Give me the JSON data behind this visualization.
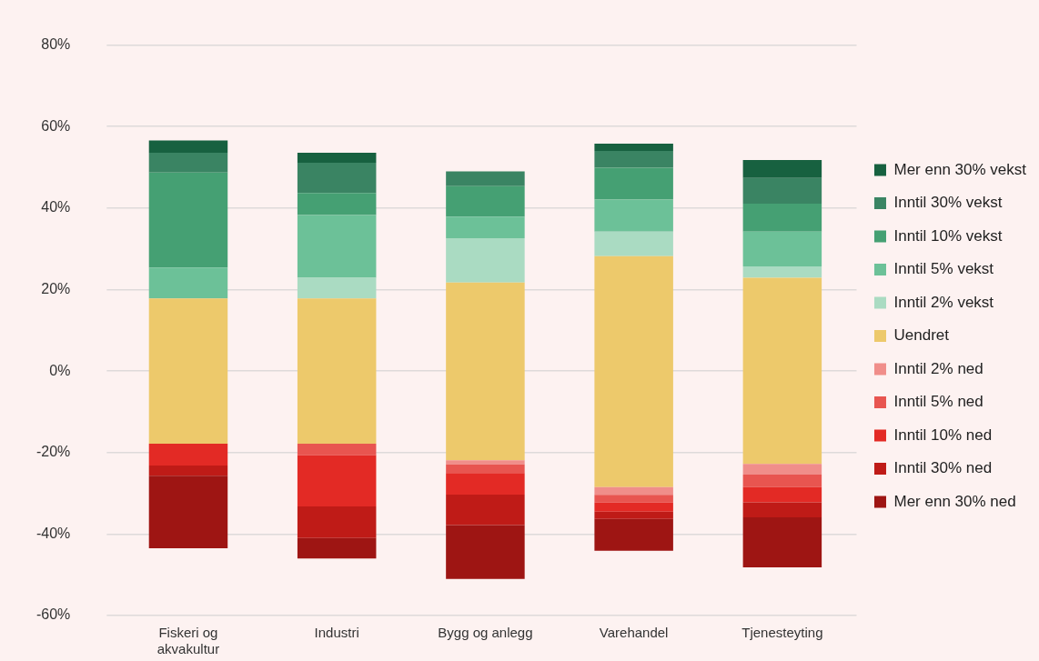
{
  "chart_data": {
    "type": "bar",
    "categories": [
      "Fiskeri og akvakultur",
      "Industri",
      "Bygg og anlegg",
      "Varehandel",
      "Tjenesteyting"
    ],
    "series": [
      {
        "name": "Mer enn 30% ned",
        "color": "#9e1513",
        "base": [
          -43.5,
          -46.0,
          -51.0,
          -44.1,
          -48.2
        ],
        "values": [
          17.8,
          5.0,
          13.2,
          7.8,
          12.3
        ]
      },
      {
        "name": "Inntil 30% ned",
        "color": "#bf1b17",
        "base": [
          -25.7,
          -41.0,
          -37.8,
          -36.3,
          -35.9
        ],
        "values": [
          2.5,
          7.8,
          7.5,
          1.8,
          3.7
        ]
      },
      {
        "name": "Inntil 10% ned",
        "color": "#e32a25",
        "base": [
          -23.2,
          -33.2,
          -30.3,
          -34.5,
          -32.2
        ],
        "values": [
          5.4,
          12.6,
          5.3,
          2.2,
          3.7
        ]
      },
      {
        "name": "Inntil 5% ned",
        "color": "#e85550",
        "base": [
          null,
          -20.6,
          -25.0,
          -32.3,
          -28.5
        ],
        "values": [
          null,
          2.8,
          2.1,
          1.9,
          3.1
        ]
      },
      {
        "name": "Inntil 2% ned",
        "color": "#f08e8a",
        "base": [
          null,
          null,
          -22.9,
          -30.4,
          -25.4
        ],
        "values": [
          null,
          null,
          1.0,
          1.9,
          2.6
        ]
      },
      {
        "name": "Uendret",
        "color": "#edc96b",
        "base": [
          -17.8,
          -17.8,
          -21.9,
          -28.5,
          -22.8
        ],
        "values": [
          35.6,
          35.6,
          43.6,
          56.7,
          45.7
        ]
      },
      {
        "name": "Inntil 2% vekst",
        "color": "#aadbc2",
        "base": [
          null,
          17.8,
          21.7,
          28.2,
          22.9
        ],
        "values": [
          null,
          5.1,
          10.9,
          6.0,
          2.8
        ]
      },
      {
        "name": "Inntil 5% vekst",
        "color": "#6cc198",
        "base": [
          17.8,
          22.9,
          32.6,
          34.2,
          25.7
        ],
        "values": [
          7.6,
          15.4,
          5.3,
          7.9,
          8.5
        ]
      },
      {
        "name": "Inntil 10% vekst",
        "color": "#45a073",
        "base": [
          25.4,
          38.3,
          37.9,
          42.1,
          34.2
        ],
        "values": [
          23.3,
          5.4,
          7.5,
          7.8,
          6.9
        ]
      },
      {
        "name": "Inntil 30% vekst",
        "color": "#3a8463",
        "base": [
          48.7,
          43.7,
          45.4,
          49.9,
          41.1
        ],
        "values": [
          4.9,
          7.4,
          3.6,
          4.1,
          6.3
        ]
      },
      {
        "name": "Mer enn 30% vekst",
        "color": "#176140",
        "base": [
          53.6,
          51.1,
          null,
          54.0,
          47.4
        ],
        "values": [
          3.0,
          2.5,
          null,
          1.8,
          4.4
        ]
      }
    ],
    "ylim": [
      -60,
      80
    ],
    "yticks": [
      {
        "value": -60,
        "label": "-60%"
      },
      {
        "value": -40,
        "label": "-40%"
      },
      {
        "value": -20,
        "label": "-20%"
      },
      {
        "value": 0,
        "label": "0%"
      },
      {
        "value": 20,
        "label": "20%"
      },
      {
        "value": 40,
        "label": "40%"
      },
      {
        "value": 60,
        "label": "60%"
      },
      {
        "value": 80,
        "label": "80%"
      }
    ],
    "grid": "y",
    "legend": "right"
  }
}
